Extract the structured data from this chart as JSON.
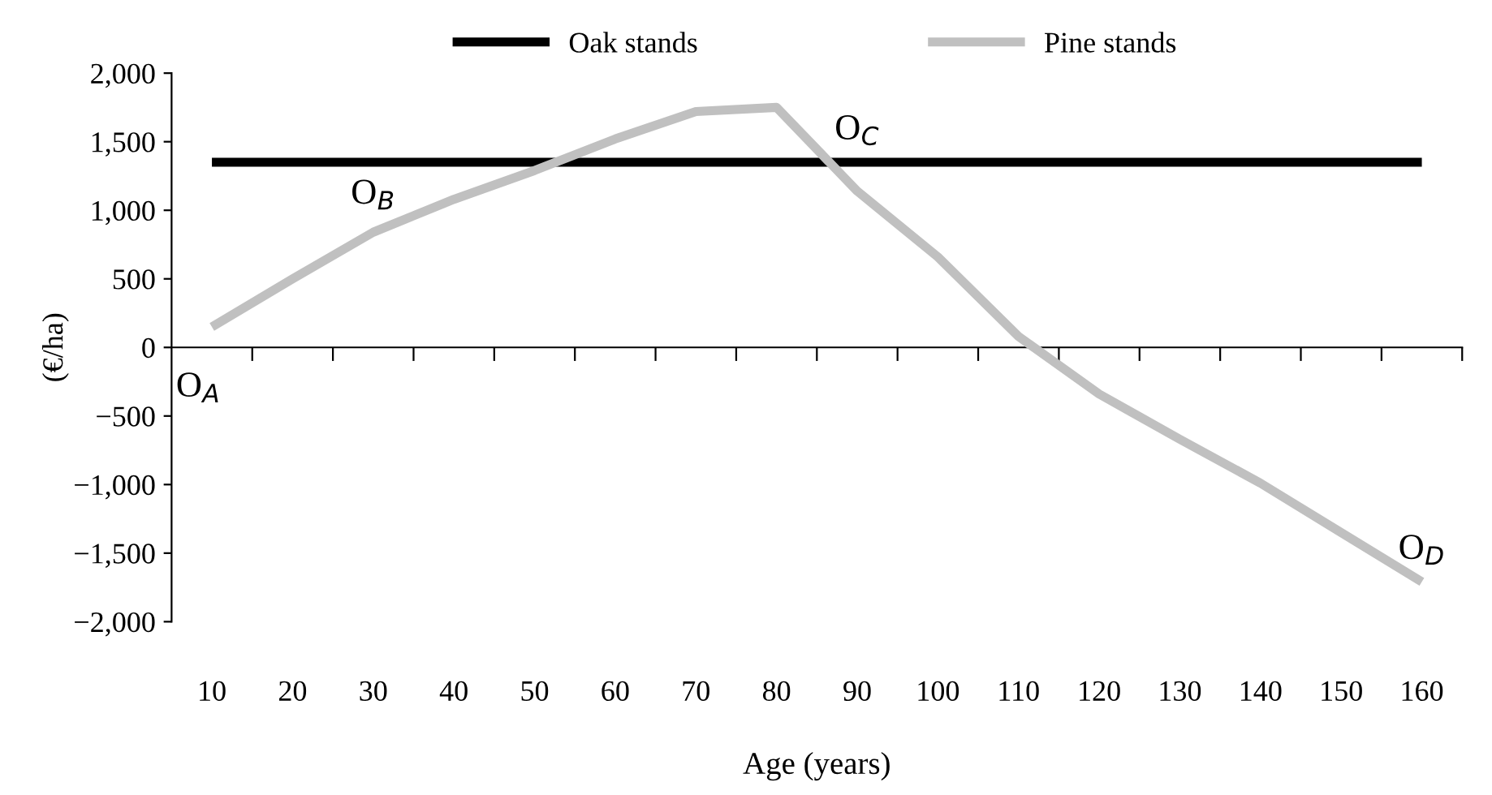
{
  "chart_data": {
    "type": "line",
    "xlabel": "Age (years)",
    "ylabel": "(€/ha)",
    "categories": [
      "10",
      "20",
      "30",
      "40",
      "50",
      "60",
      "70",
      "80",
      "90",
      "100",
      "110",
      "120",
      "130",
      "140",
      "150",
      "160"
    ],
    "series": [
      {
        "name": "Oak stands",
        "color": "#000000",
        "values": [
          1350,
          1350,
          1350,
          1350,
          1350,
          1350,
          1350,
          1350,
          1350,
          1350,
          1350,
          1350,
          1350,
          1350,
          1350,
          1350
        ]
      },
      {
        "name": "Pine stands",
        "color": "#c0c0c0",
        "values": [
          150,
          500,
          840,
          1080,
          1290,
          1520,
          1720,
          1750,
          1140,
          660,
          80,
          -340,
          -670,
          -990,
          -1350,
          -1710
        ]
      }
    ],
    "ylim": [
      -2000,
      2000
    ],
    "yticks": [
      {
        "value": -2000,
        "label": "−2,000"
      },
      {
        "value": -1500,
        "label": "−1,500"
      },
      {
        "value": -1000,
        "label": "−1,000"
      },
      {
        "value": -500,
        "label": "−500"
      },
      0,
      {
        "value": 500,
        "label": "500"
      },
      {
        "value": 1000,
        "label": "1,000"
      },
      {
        "value": 1500,
        "label": "1,500"
      },
      {
        "value": 2000,
        "label": "2,000"
      }
    ],
    "grid": false,
    "legend": "top",
    "marker": "none",
    "line_style": "solid",
    "annotations": [
      "O$_{A}$",
      {
        "text": "O$_{B}$",
        "x": "30",
        "y": 880
      },
      {
        "text": "O$_{C}$",
        "x": "90",
        "y": 1350
      },
      {
        "text": "O$_{D}$",
        "x": "160",
        "y": -1710
      }
    ]
  }
}
